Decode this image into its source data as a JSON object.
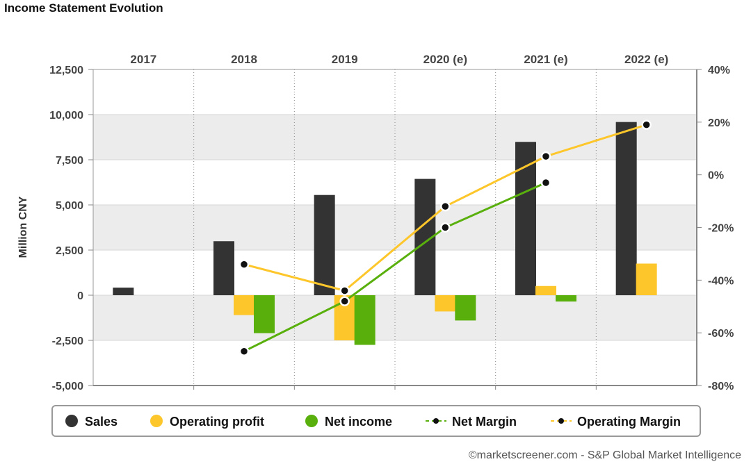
{
  "title": "Income Statement Evolution",
  "credit": "©marketscreener.com - S&P Global Market Intelligence",
  "colors": {
    "sales": "#333333",
    "operating_profit": "#fdc62a",
    "net_income": "#59b00d",
    "net_margin": "#59b00d",
    "operating_margin": "#fdc62a"
  },
  "chart_data": {
    "type": "bar",
    "categories": [
      "2017",
      "2018",
      "2019",
      "2020 (e)",
      "2021 (e)",
      "2022 (e)"
    ],
    "ylabel": "Million CNY",
    "ylim": [
      -5000,
      12500
    ],
    "yticks": [
      "12,500",
      "10,000",
      "7,500",
      "5,000",
      "2,500",
      "0",
      "-2,500",
      "-5,000"
    ],
    "ytick_values": [
      12500,
      10000,
      7500,
      5000,
      2500,
      0,
      -2500,
      -5000
    ],
    "y2lim": [
      -80,
      40
    ],
    "y2ticks": [
      "40%",
      "20%",
      "0%",
      "-20%",
      "-40%",
      "-60%",
      "-80%"
    ],
    "y2tick_values": [
      40,
      20,
      0,
      -20,
      -40,
      -60,
      -80
    ],
    "series": [
      {
        "name": "Sales",
        "kind": "bar",
        "values": [
          420,
          2990,
          5550,
          6440,
          8490,
          9590
        ]
      },
      {
        "name": "Operating profit",
        "kind": "bar",
        "values": [
          null,
          -1100,
          -2500,
          -900,
          510,
          1750
        ]
      },
      {
        "name": "Net income",
        "kind": "bar",
        "values": [
          null,
          -2100,
          -2750,
          -1400,
          -350,
          null
        ]
      },
      {
        "name": "Net Margin",
        "kind": "line",
        "axis": "right",
        "values": [
          null,
          -67,
          -48,
          -20,
          -3,
          null
        ]
      },
      {
        "name": "Operating Margin",
        "kind": "line",
        "axis": "right",
        "values": [
          null,
          -34,
          -44,
          -12,
          7,
          19
        ]
      }
    ],
    "grid": true,
    "legend": "bottom"
  }
}
